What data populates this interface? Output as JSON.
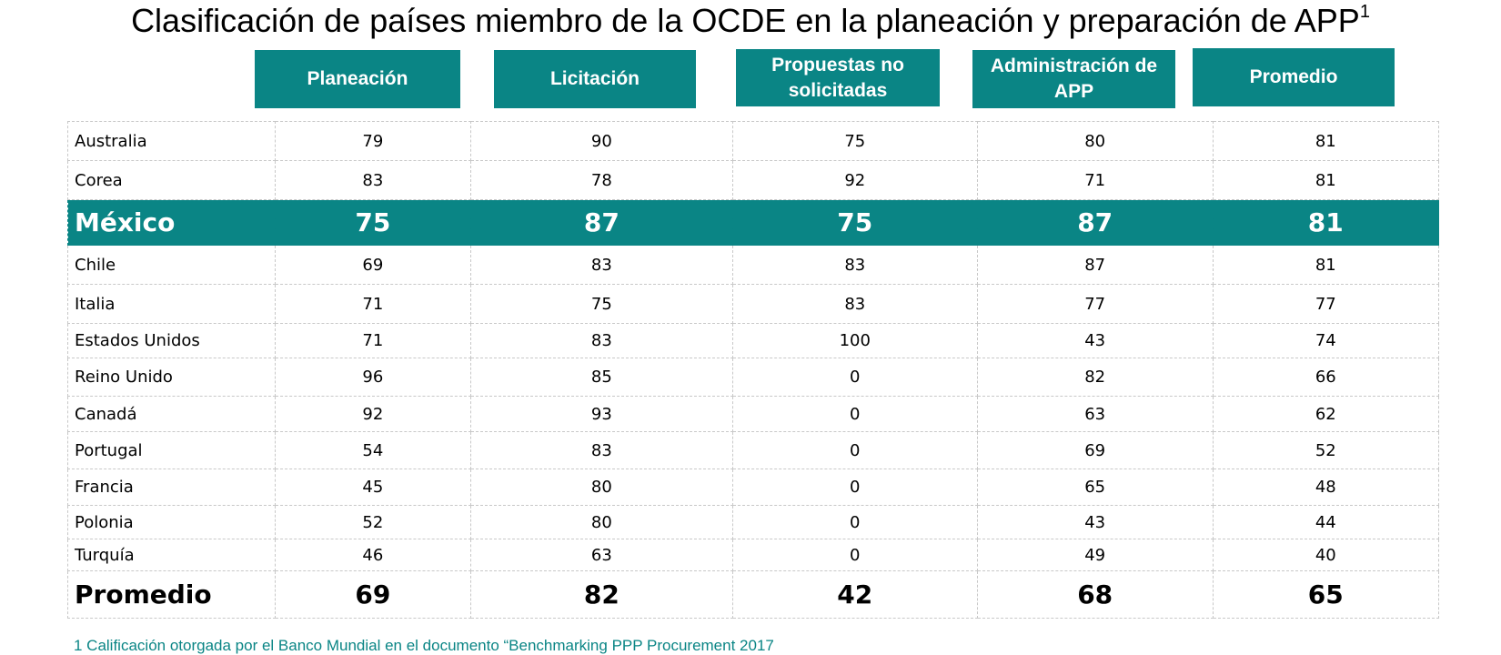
{
  "title": {
    "text": "Clasificación de países miembro de la OCDE en la planeación y preparación de APP",
    "sup": "1"
  },
  "headers": [
    "Planeación",
    "Licitación",
    "Propuestas no solicitadas",
    "Administración de APP",
    "Promedio"
  ],
  "rows": [
    {
      "country": "Australia",
      "values": [
        "79",
        "90",
        "75",
        "80",
        "81"
      ]
    },
    {
      "country": "Corea",
      "values": [
        "83",
        "78",
        "92",
        "71",
        "81"
      ]
    },
    {
      "country": "México",
      "values": [
        "75",
        "87",
        "75",
        "87",
        "81"
      ],
      "highlight": true
    },
    {
      "country": "Chile",
      "values": [
        "69",
        "83",
        "83",
        "87",
        "81"
      ]
    },
    {
      "country": "Italia",
      "values": [
        "71",
        "75",
        "83",
        "77",
        "77"
      ]
    },
    {
      "country": "Estados Unidos",
      "values": [
        "71",
        "83",
        "100",
        "43",
        "74"
      ]
    },
    {
      "country": "Reino Unido",
      "values": [
        "96",
        "85",
        "0",
        "82",
        "66"
      ]
    },
    {
      "country": "Canadá",
      "values": [
        "92",
        "93",
        "0",
        "63",
        "62"
      ]
    },
    {
      "country": "Portugal",
      "values": [
        "54",
        "83",
        "0",
        "69",
        "52"
      ]
    },
    {
      "country": "Francia",
      "values": [
        "45",
        "80",
        "0",
        "65",
        "48"
      ]
    },
    {
      "country": "Polonia",
      "values": [
        "52",
        "80",
        "0",
        "43",
        "44"
      ]
    },
    {
      "country": "Turquía",
      "values": [
        "46",
        "63",
        "0",
        "49",
        "40"
      ]
    }
  ],
  "average": {
    "label": "Promedio",
    "values": [
      "69",
      "82",
      "42",
      "68",
      "65"
    ]
  },
  "footnote": "1 Calificación otorgada por el Banco Mundial en el documento “Benchmarking PPP Procurement 2017",
  "colors": {
    "accent": "#0a8585",
    "grid": "#c8c8c8"
  }
}
